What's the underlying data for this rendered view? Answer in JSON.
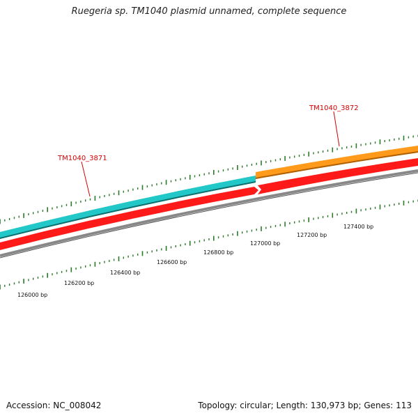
{
  "title": "Ruegeria sp. TM1040 plasmid unnamed, complete sequence",
  "footer": {
    "accession": "Accession: NC_008042",
    "summary": "Topology: circular; Length: 130,973 bp; Genes: 113"
  },
  "colors": {
    "gene_3871": "#22c8c8",
    "gene_3872": "#ff9a1a",
    "cds": "#ff1a1a",
    "backbone": "#888888",
    "ticks": "#2a7a2a",
    "label": "#d40000"
  },
  "genes": [
    {
      "name": "TM1040_3871",
      "color": "#22c8c8"
    },
    {
      "name": "TM1040_3872",
      "color": "#ff9a1a"
    }
  ],
  "ruler": {
    "labels": [
      "126000 bp",
      "126200 bp",
      "126400 bp",
      "126600 bp",
      "126800 bp",
      "127000 bp",
      "127200 bp",
      "127400 bp"
    ]
  }
}
